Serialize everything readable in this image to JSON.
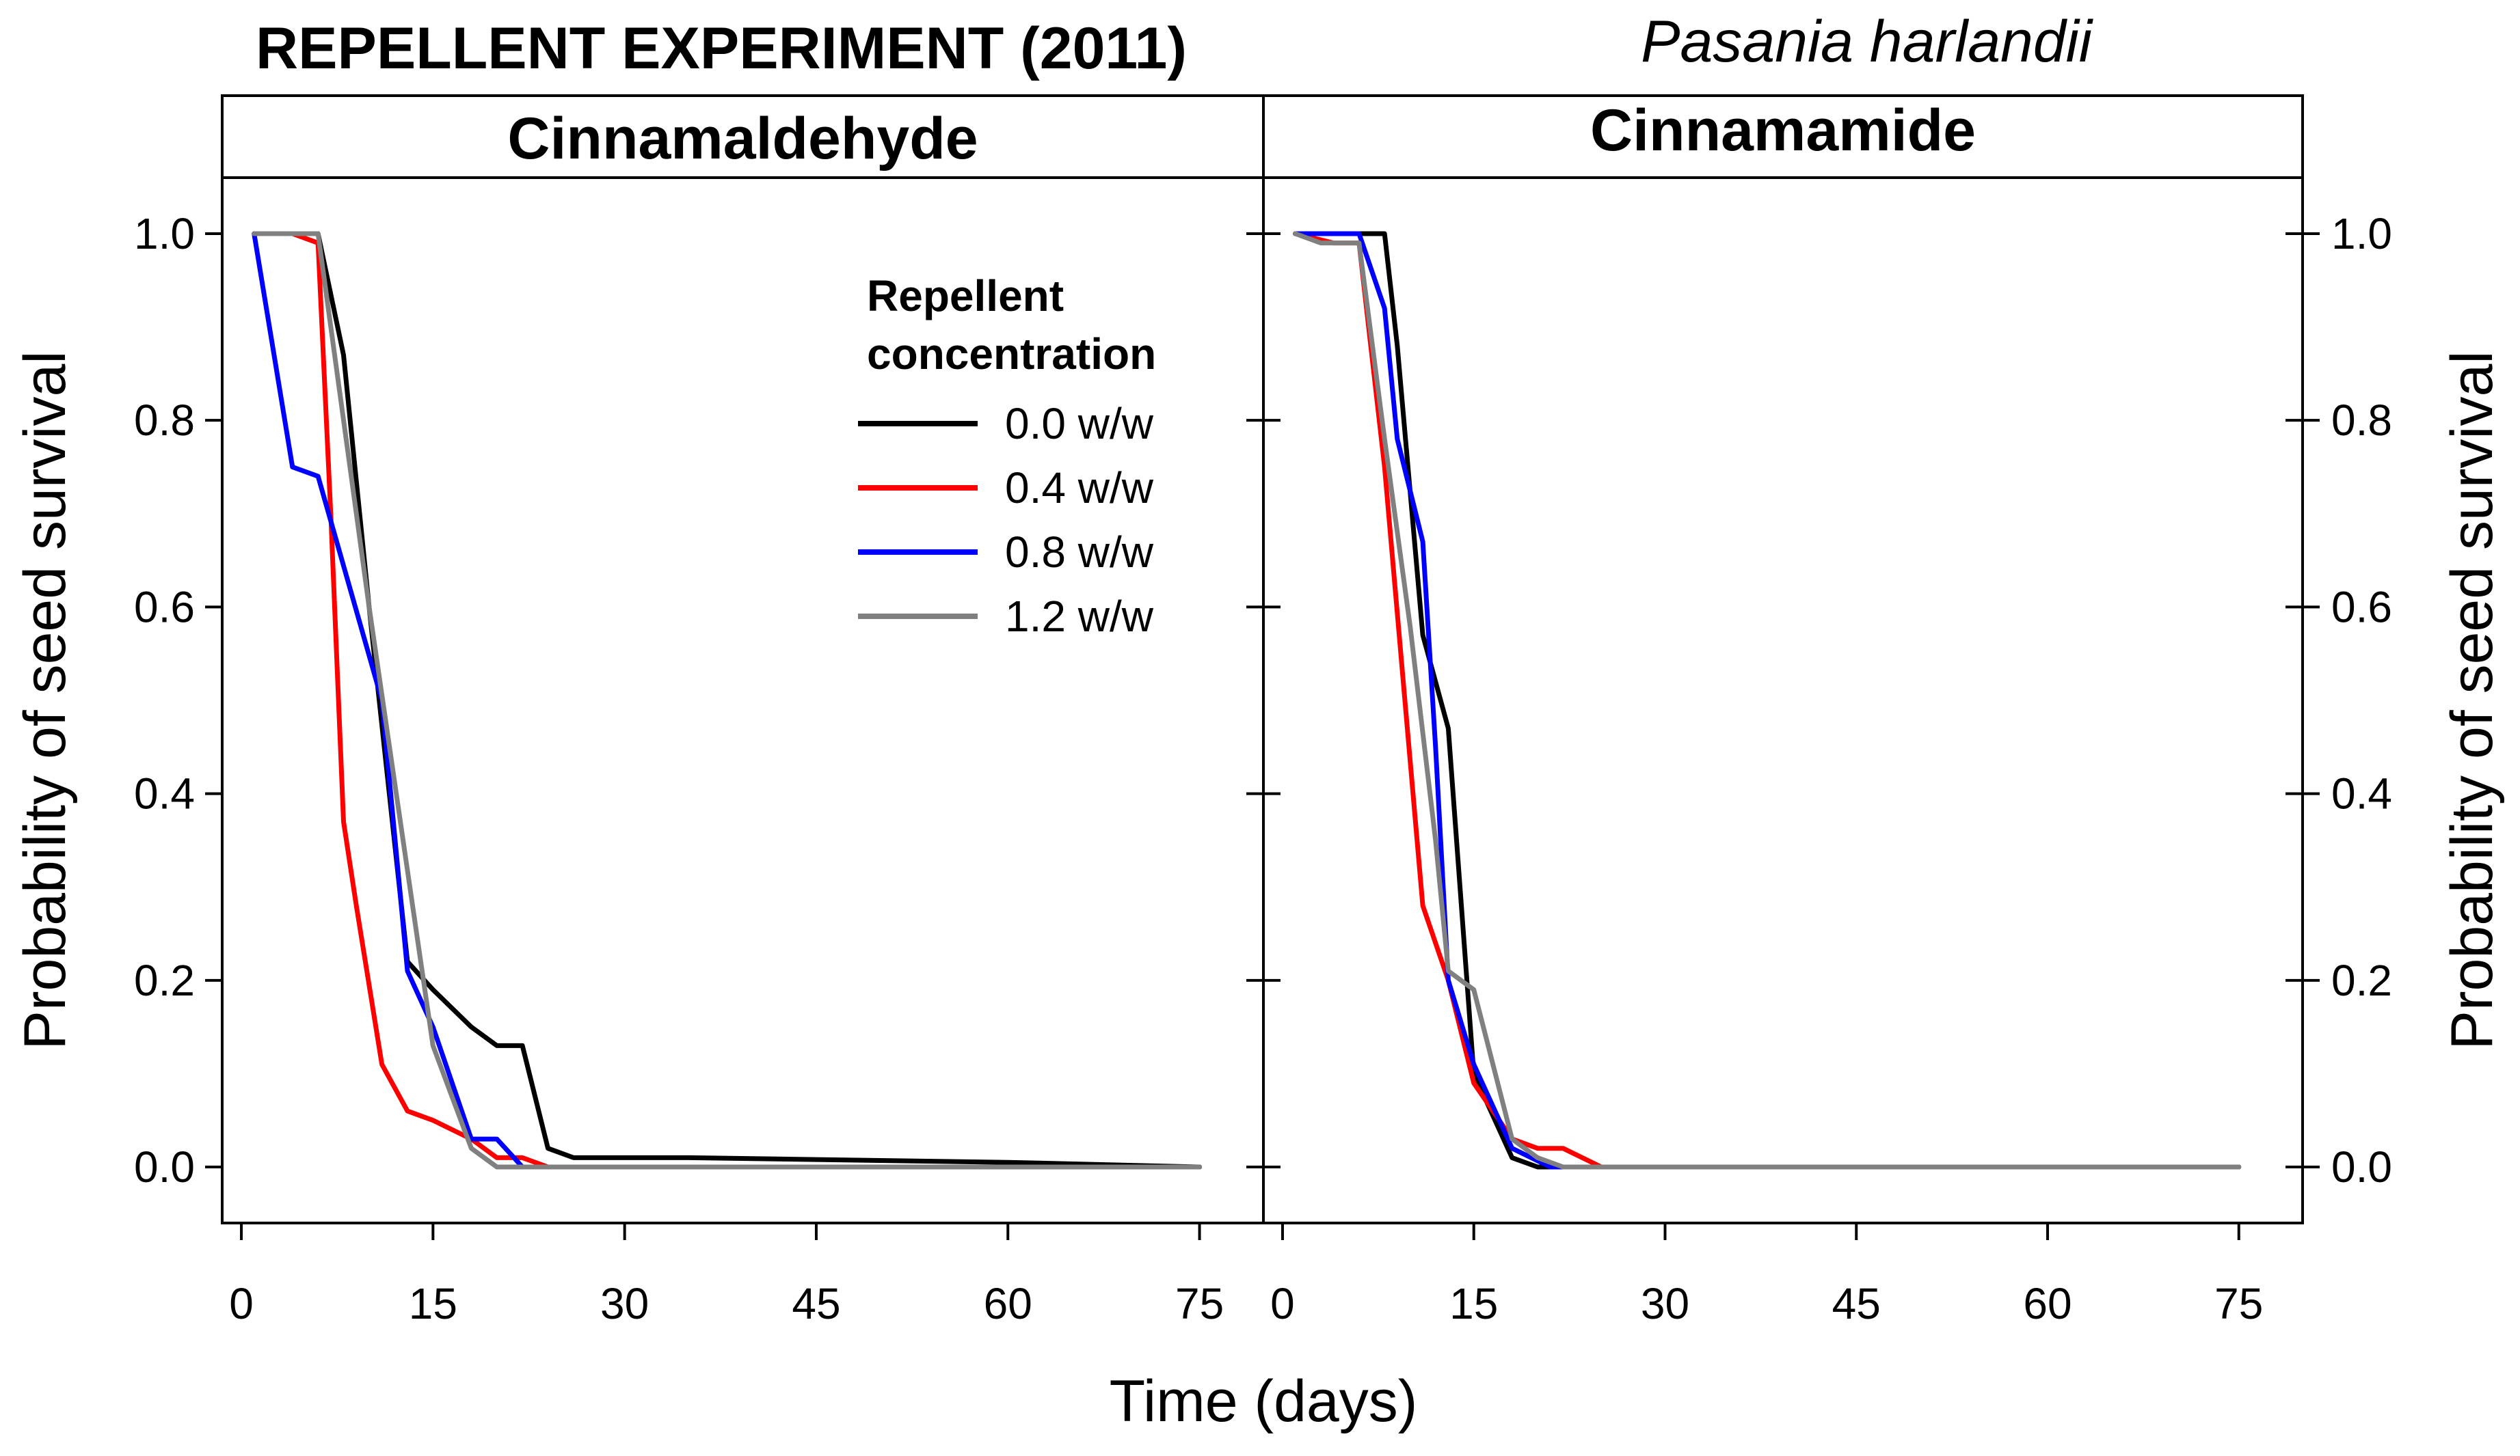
{
  "chart_data": {
    "type": "line",
    "title": "REPELLENT EXPERIMENT (2011)",
    "subtitle": "Pasania harlandii",
    "xlabel": "Time (days)",
    "ylabel": "Probability of seed survival",
    "xlim": [
      -1.5,
      80
    ],
    "ylim": [
      -0.06,
      1.06
    ],
    "x_ticks": [
      0,
      15,
      30,
      45,
      60,
      75
    ],
    "x_tick_labels": [
      "0",
      "15",
      "30",
      "45",
      "60",
      "75"
    ],
    "y_ticks": [
      0.0,
      0.2,
      0.4,
      0.6,
      0.8,
      1.0
    ],
    "y_tick_labels": [
      "0.0",
      "0.2",
      "0.4",
      "0.6",
      "0.8",
      "1.0"
    ],
    "legend": {
      "title_line1": "Repellent",
      "title_line2": "concentration",
      "placement": "top-right of left panel",
      "entries": [
        {
          "label": "0.0 w/w",
          "color": "#000000"
        },
        {
          "label": "0.4 w/w",
          "color": "#ff0000"
        },
        {
          "label": "0.8 w/w",
          "color": "#0000ff"
        },
        {
          "label": "1.2 w/w",
          "color": "#808080"
        }
      ]
    },
    "panels": [
      {
        "name": "Cinnamaldehyde",
        "series": [
          {
            "name": "0.0 w/w",
            "color": "#000000",
            "x": [
              1,
              6,
              8,
              10,
              13,
              15,
              18,
              20,
              22,
              24,
              26,
              35,
              50,
              60,
              75
            ],
            "y": [
              1.0,
              1.0,
              0.87,
              0.6,
              0.22,
              0.19,
              0.15,
              0.13,
              0.13,
              0.02,
              0.01,
              0.01,
              0.007,
              0.005,
              0.0
            ]
          },
          {
            "name": "0.4 w/w",
            "color": "#ff0000",
            "x": [
              1,
              4,
              6,
              7,
              8,
              9,
              11,
              13,
              15,
              18,
              20,
              22,
              24,
              75
            ],
            "y": [
              1.0,
              1.0,
              0.99,
              0.7,
              0.37,
              0.28,
              0.11,
              0.06,
              0.05,
              0.03,
              0.01,
              0.01,
              0.0,
              0.0
            ]
          },
          {
            "name": "0.8 w/w",
            "color": "#0000ff",
            "x": [
              1,
              4,
              6,
              11,
              13,
              15,
              18,
              20,
              21,
              22,
              75
            ],
            "y": [
              1.0,
              0.75,
              0.74,
              0.5,
              0.21,
              0.15,
              0.03,
              0.03,
              0.015,
              0.0,
              0.0
            ]
          },
          {
            "name": "1.2 w/w",
            "color": "#808080",
            "x": [
              1,
              4,
              6,
              10,
              15,
              18,
              20,
              75
            ],
            "y": [
              1.0,
              1.0,
              1.0,
              0.6,
              0.13,
              0.02,
              0.0,
              0.0
            ]
          }
        ]
      },
      {
        "name": "Cinnamamide",
        "series": [
          {
            "name": "0.0 w/w",
            "color": "#000000",
            "x": [
              1,
              8,
              9,
              11,
              13,
              15,
              18,
              20,
              75
            ],
            "y": [
              1.0,
              1.0,
              0.88,
              0.57,
              0.47,
              0.1,
              0.01,
              0.0,
              0.0
            ]
          },
          {
            "name": "0.4 w/w",
            "color": "#ff0000",
            "x": [
              1,
              4,
              6,
              8,
              11,
              13,
              15,
              18,
              20,
              22,
              25,
              75
            ],
            "y": [
              1.0,
              0.99,
              0.99,
              0.75,
              0.28,
              0.2,
              0.09,
              0.03,
              0.02,
              0.02,
              0.0,
              0.0
            ]
          },
          {
            "name": "0.8 w/w",
            "color": "#0000ff",
            "x": [
              1,
              4,
              6,
              8,
              9,
              11,
              12,
              13,
              15,
              18,
              21,
              75
            ],
            "y": [
              1.0,
              1.0,
              1.0,
              0.92,
              0.78,
              0.67,
              0.45,
              0.2,
              0.11,
              0.02,
              0.0,
              0.0
            ]
          },
          {
            "name": "1.2 w/w",
            "color": "#808080",
            "x": [
              1,
              3,
              6,
              8,
              10,
              12,
              13,
              15,
              18,
              20,
              22,
              75
            ],
            "y": [
              1.0,
              0.99,
              0.99,
              0.78,
              0.58,
              0.35,
              0.21,
              0.19,
              0.03,
              0.01,
              0.0,
              0.0
            ]
          }
        ]
      }
    ]
  }
}
